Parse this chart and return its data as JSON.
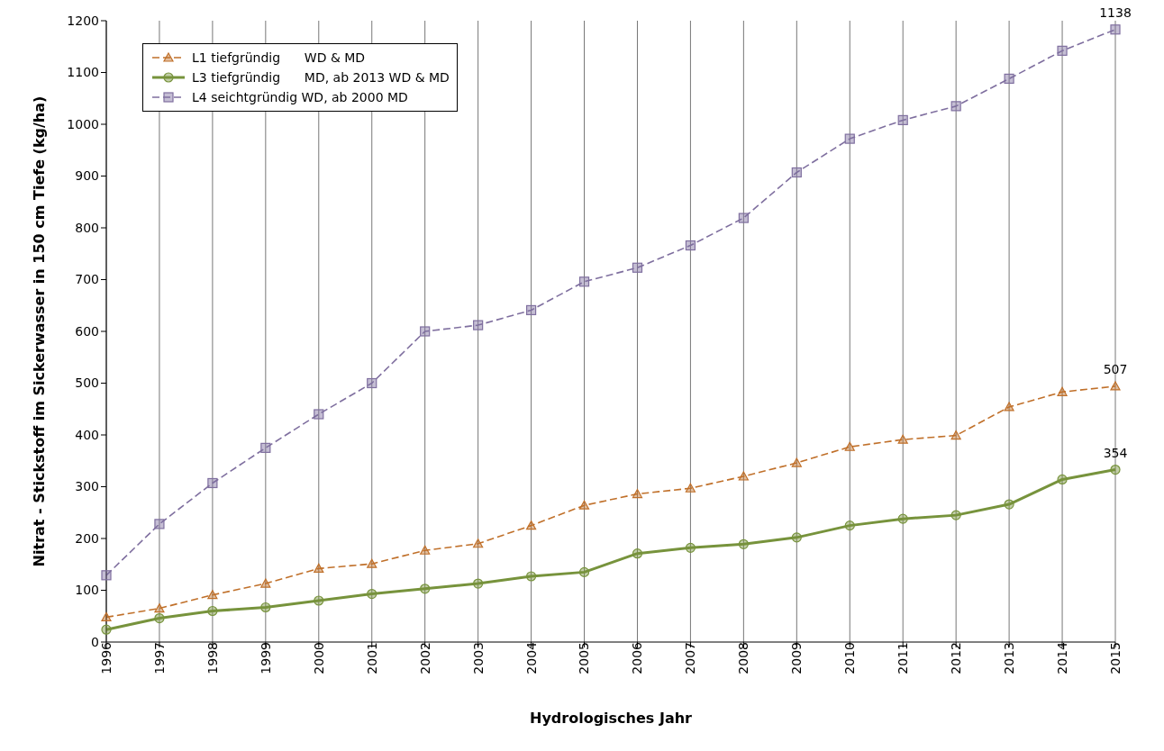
{
  "chart_data": {
    "type": "line",
    "xlabel": "Hydrologisches Jahr",
    "ylabel": "Nitrat - Stickstoff im Sickerwasser in  150 cm Tiefe (kg/ha)",
    "categories": [
      "1996",
      "1997",
      "1998",
      "1999",
      "2000",
      "2001",
      "2002",
      "2003",
      "2004",
      "2005",
      "2006",
      "2007",
      "2008",
      "2009",
      "2010",
      "2011",
      "2012",
      "2013",
      "2014",
      "2015"
    ],
    "series": [
      {
        "name": "L1 tiefgründig      WD & MD",
        "color": "#c0702a",
        "marker": "triangle",
        "line_style": "dashed",
        "values": [
          48,
          65,
          91,
          113,
          142,
          151,
          177,
          190,
          225,
          264,
          286,
          297,
          320,
          346,
          377,
          391,
          399,
          454,
          483,
          494
        ]
      },
      {
        "name": "L3 tiefgründig      MD, ab 2013 WD & MD",
        "color": "#77933c",
        "marker": "circle",
        "line_style": "solid",
        "values": [
          24,
          46,
          60,
          67,
          80,
          93,
          103,
          113,
          127,
          135,
          171,
          182,
          189,
          202,
          225,
          238,
          245,
          266,
          314,
          333
        ]
      },
      {
        "name": "L4 seichtgründig WD, ab 2000 MD",
        "color": "#7f6f9f",
        "marker": "square",
        "line_style": "dashed",
        "values": [
          129,
          228,
          307,
          375,
          440,
          500,
          600,
          612,
          641,
          696,
          723,
          766,
          819,
          907,
          972,
          1008,
          1035,
          1088,
          1142,
          1183
        ]
      }
    ],
    "ylim": [
      0,
      1200
    ],
    "yticks": [
      0,
      100,
      200,
      300,
      400,
      500,
      600,
      700,
      800,
      900,
      1000,
      1100,
      1200
    ],
    "grid": "x",
    "legend": "top left",
    "annotations": [
      "507",
      "354",
      "1138"
    ]
  }
}
